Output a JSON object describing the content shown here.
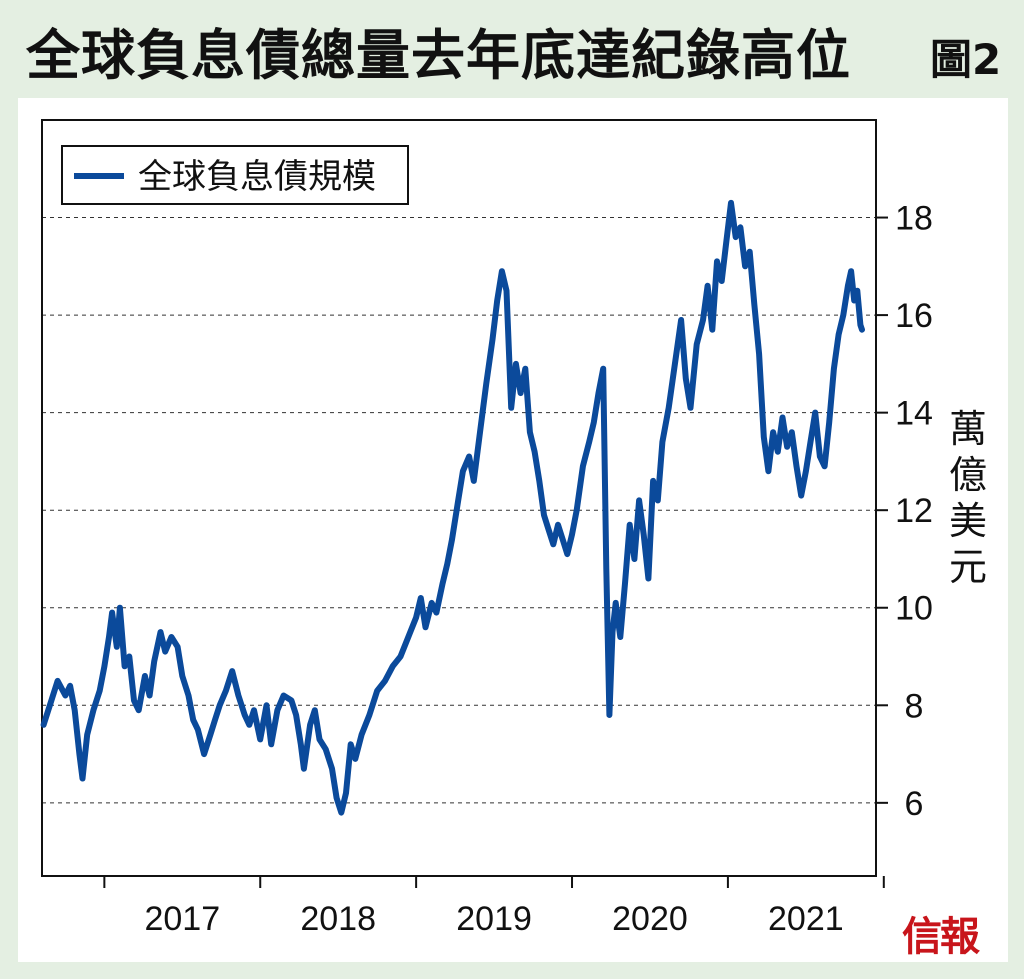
{
  "title": "全球負息債總量去年底達紀錄高位",
  "figure_number": "圖2",
  "logo_text": "信報",
  "colors": {
    "series": "#0b4a9b",
    "background": "#e4efe2",
    "panel": "#ffffff",
    "logo": "#c8151b"
  },
  "chart_data": {
    "type": "line",
    "ylabel": "萬億美元",
    "ylim": [
      4.5,
      20
    ],
    "yticks": [
      6,
      8,
      10,
      12,
      14,
      16,
      18
    ],
    "y_axis_position": "right",
    "grid": "horizontal dashed",
    "legend": "top-left",
    "xlim": [
      2016.6,
      2021.95
    ],
    "xticks": [
      2017,
      2018,
      2019,
      2020,
      2021,
      2022
    ],
    "xtick_labels": [
      "2017",
      "2018",
      "2019",
      "2020",
      "2021"
    ],
    "series": [
      {
        "name": "全球負息債規模",
        "points": [
          [
            2016.61,
            7.6
          ],
          [
            2016.66,
            8.1
          ],
          [
            2016.7,
            8.5
          ],
          [
            2016.75,
            8.2
          ],
          [
            2016.78,
            8.4
          ],
          [
            2016.81,
            7.9
          ],
          [
            2016.84,
            7.0
          ],
          [
            2016.86,
            6.5
          ],
          [
            2016.89,
            7.4
          ],
          [
            2016.93,
            7.9
          ],
          [
            2016.97,
            8.3
          ],
          [
            2017.0,
            8.8
          ],
          [
            2017.03,
            9.4
          ],
          [
            2017.05,
            9.9
          ],
          [
            2017.08,
            9.2
          ],
          [
            2017.1,
            10.0
          ],
          [
            2017.13,
            8.8
          ],
          [
            2017.16,
            9.0
          ],
          [
            2017.19,
            8.1
          ],
          [
            2017.22,
            7.9
          ],
          [
            2017.26,
            8.6
          ],
          [
            2017.29,
            8.2
          ],
          [
            2017.32,
            8.9
          ],
          [
            2017.36,
            9.5
          ],
          [
            2017.39,
            9.1
          ],
          [
            2017.43,
            9.4
          ],
          [
            2017.47,
            9.2
          ],
          [
            2017.5,
            8.6
          ],
          [
            2017.54,
            8.2
          ],
          [
            2017.57,
            7.7
          ],
          [
            2017.6,
            7.5
          ],
          [
            2017.64,
            7.0
          ],
          [
            2017.68,
            7.4
          ],
          [
            2017.71,
            7.7
          ],
          [
            2017.74,
            8.0
          ],
          [
            2017.78,
            8.3
          ],
          [
            2017.82,
            8.7
          ],
          [
            2017.86,
            8.2
          ],
          [
            2017.9,
            7.8
          ],
          [
            2017.93,
            7.6
          ],
          [
            2017.96,
            7.9
          ],
          [
            2018.0,
            7.3
          ],
          [
            2018.04,
            8.0
          ],
          [
            2018.07,
            7.2
          ],
          [
            2018.11,
            7.9
          ],
          [
            2018.15,
            8.2
          ],
          [
            2018.2,
            8.1
          ],
          [
            2018.23,
            7.8
          ],
          [
            2018.26,
            7.2
          ],
          [
            2018.28,
            6.7
          ],
          [
            2018.32,
            7.6
          ],
          [
            2018.35,
            7.9
          ],
          [
            2018.38,
            7.3
          ],
          [
            2018.42,
            7.1
          ],
          [
            2018.46,
            6.7
          ],
          [
            2018.49,
            6.1
          ],
          [
            2018.52,
            5.8
          ],
          [
            2018.55,
            6.2
          ],
          [
            2018.58,
            7.2
          ],
          [
            2018.61,
            6.9
          ],
          [
            2018.65,
            7.4
          ],
          [
            2018.7,
            7.8
          ],
          [
            2018.75,
            8.3
          ],
          [
            2018.8,
            8.5
          ],
          [
            2018.85,
            8.8
          ],
          [
            2018.9,
            9.0
          ],
          [
            2018.95,
            9.4
          ],
          [
            2019.0,
            9.8
          ],
          [
            2019.03,
            10.2
          ],
          [
            2019.06,
            9.6
          ],
          [
            2019.1,
            10.1
          ],
          [
            2019.13,
            9.9
          ],
          [
            2019.17,
            10.5
          ],
          [
            2019.2,
            10.9
          ],
          [
            2019.23,
            11.4
          ],
          [
            2019.27,
            12.2
          ],
          [
            2019.3,
            12.8
          ],
          [
            2019.34,
            13.1
          ],
          [
            2019.37,
            12.6
          ],
          [
            2019.41,
            13.6
          ],
          [
            2019.45,
            14.6
          ],
          [
            2019.49,
            15.5
          ],
          [
            2019.52,
            16.3
          ],
          [
            2019.55,
            16.9
          ],
          [
            2019.58,
            16.5
          ],
          [
            2019.61,
            14.1
          ],
          [
            2019.64,
            15.0
          ],
          [
            2019.67,
            14.4
          ],
          [
            2019.7,
            14.9
          ],
          [
            2019.73,
            13.6
          ],
          [
            2019.76,
            13.2
          ],
          [
            2019.79,
            12.6
          ],
          [
            2019.82,
            11.9
          ],
          [
            2019.85,
            11.6
          ],
          [
            2019.88,
            11.3
          ],
          [
            2019.91,
            11.7
          ],
          [
            2019.94,
            11.4
          ],
          [
            2019.97,
            11.1
          ],
          [
            2020.0,
            11.5
          ],
          [
            2020.03,
            12.0
          ],
          [
            2020.07,
            12.9
          ],
          [
            2020.11,
            13.4
          ],
          [
            2020.14,
            13.8
          ],
          [
            2020.17,
            14.4
          ],
          [
            2020.2,
            14.9
          ],
          [
            2020.22,
            10.8
          ],
          [
            2020.24,
            7.8
          ],
          [
            2020.26,
            9.5
          ],
          [
            2020.28,
            10.1
          ],
          [
            2020.31,
            9.4
          ],
          [
            2020.34,
            10.5
          ],
          [
            2020.37,
            11.7
          ],
          [
            2020.4,
            11.0
          ],
          [
            2020.43,
            12.2
          ],
          [
            2020.46,
            11.5
          ],
          [
            2020.49,
            10.6
          ],
          [
            2020.52,
            12.6
          ],
          [
            2020.55,
            12.2
          ],
          [
            2020.58,
            13.4
          ],
          [
            2020.62,
            14.1
          ],
          [
            2020.66,
            15.0
          ],
          [
            2020.7,
            15.9
          ],
          [
            2020.73,
            14.7
          ],
          [
            2020.76,
            14.1
          ],
          [
            2020.8,
            15.4
          ],
          [
            2020.84,
            15.9
          ],
          [
            2020.87,
            16.6
          ],
          [
            2020.9,
            15.7
          ],
          [
            2020.93,
            17.1
          ],
          [
            2020.96,
            16.7
          ],
          [
            2020.99,
            17.5
          ],
          [
            2021.02,
            18.3
          ],
          [
            2021.05,
            17.6
          ],
          [
            2021.08,
            17.8
          ],
          [
            2021.11,
            17.0
          ],
          [
            2021.14,
            17.3
          ],
          [
            2021.17,
            16.2
          ],
          [
            2021.2,
            15.2
          ],
          [
            2021.23,
            13.5
          ],
          [
            2021.26,
            12.8
          ],
          [
            2021.29,
            13.6
          ],
          [
            2021.32,
            13.2
          ],
          [
            2021.35,
            13.9
          ],
          [
            2021.38,
            13.3
          ],
          [
            2021.41,
            13.6
          ],
          [
            2021.44,
            12.9
          ],
          [
            2021.47,
            12.3
          ],
          [
            2021.5,
            12.8
          ],
          [
            2021.53,
            13.4
          ],
          [
            2021.56,
            14.0
          ],
          [
            2021.59,
            13.1
          ],
          [
            2021.62,
            12.9
          ],
          [
            2021.65,
            13.8
          ],
          [
            2021.68,
            14.9
          ],
          [
            2021.71,
            15.6
          ],
          [
            2021.74,
            16.0
          ],
          [
            2021.77,
            16.6
          ],
          [
            2021.79,
            16.9
          ],
          [
            2021.81,
            16.3
          ],
          [
            2021.83,
            16.5
          ],
          [
            2021.85,
            15.8
          ],
          [
            2021.86,
            15.7
          ]
        ]
      }
    ]
  }
}
